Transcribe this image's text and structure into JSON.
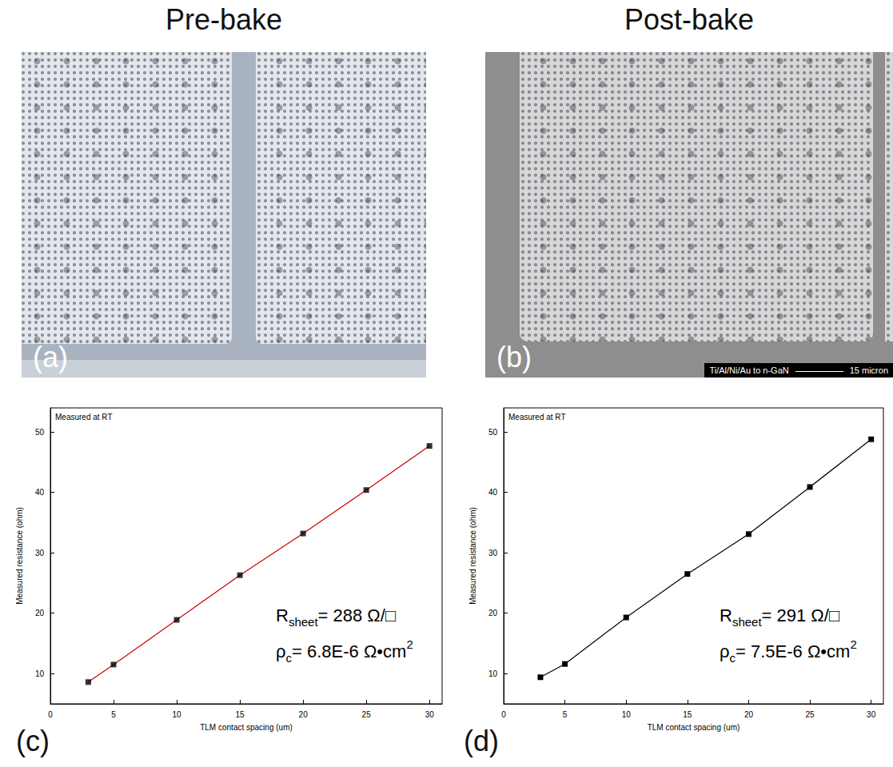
{
  "headings": [
    "Pre-bake",
    "Post-bake"
  ],
  "images": [
    {
      "label": "(a)"
    },
    {
      "label": "(b)",
      "caption": "Ti/Al/Ni/Au to n-GaN",
      "scale_bar": "15 micron"
    }
  ],
  "chart_data": [
    {
      "type": "line",
      "label": "(c)",
      "xlabel": "TLM contact spacing (um)",
      "ylabel": "Measured resistance (ohm)",
      "annotations": [
        {
          "text": "Measured at RT"
        },
        {
          "text": "R",
          "sub": "sheet",
          "after": "= 288 Ω/□"
        },
        {
          "text": "ρ",
          "sub": "c",
          "after": "= 6.8E-6 Ω•cm",
          "sup": "2"
        }
      ],
      "x": [
        3,
        5,
        10,
        15,
        20,
        25,
        30
      ],
      "series": [
        {
          "type": "line",
          "color": "#cc0000",
          "line_style": "solid",
          "marker": "none",
          "values": [
            8.6,
            11.5,
            18.9,
            26.3,
            33.2,
            40.4,
            47.7
          ]
        },
        {
          "type": "scatter",
          "color": "#000000",
          "marker": "square",
          "values": [
            8.6,
            11.5,
            18.9,
            26.3,
            33.2,
            40.4,
            47.7
          ]
        }
      ],
      "xlim": [
        0,
        31
      ],
      "xticks": [
        0,
        5,
        10,
        15,
        20,
        25,
        30
      ],
      "ylim": [
        5,
        54
      ],
      "yticks": [
        10,
        20,
        30,
        40,
        50
      ],
      "grid": false
    },
    {
      "type": "line",
      "label": "(d)",
      "xlabel": "TLM contact spacing (um)",
      "ylabel": "Measured resistance (ohm)",
      "annotations": [
        {
          "text": "Measured at RT"
        },
        {
          "text": "R",
          "sub": "sheet",
          "after": "= 291 Ω/□"
        },
        {
          "text": "ρ",
          "sub": "c",
          "after": "= 7.5E-6 Ω•cm",
          "sup": "2"
        }
      ],
      "x": [
        3,
        5,
        10,
        15,
        20,
        25,
        30
      ],
      "series": [
        {
          "type": "line",
          "color": "#000000",
          "line_style": "solid",
          "marker": "square",
          "values": [
            9.4,
            11.6,
            19.3,
            26.5,
            33.1,
            40.9,
            48.8
          ]
        }
      ],
      "xlim": [
        0,
        31
      ],
      "xticks": [
        0,
        5,
        10,
        15,
        20,
        25,
        30
      ],
      "ylim": [
        5,
        54
      ],
      "yticks": [
        10,
        20,
        30,
        40,
        50
      ],
      "grid": false
    }
  ]
}
